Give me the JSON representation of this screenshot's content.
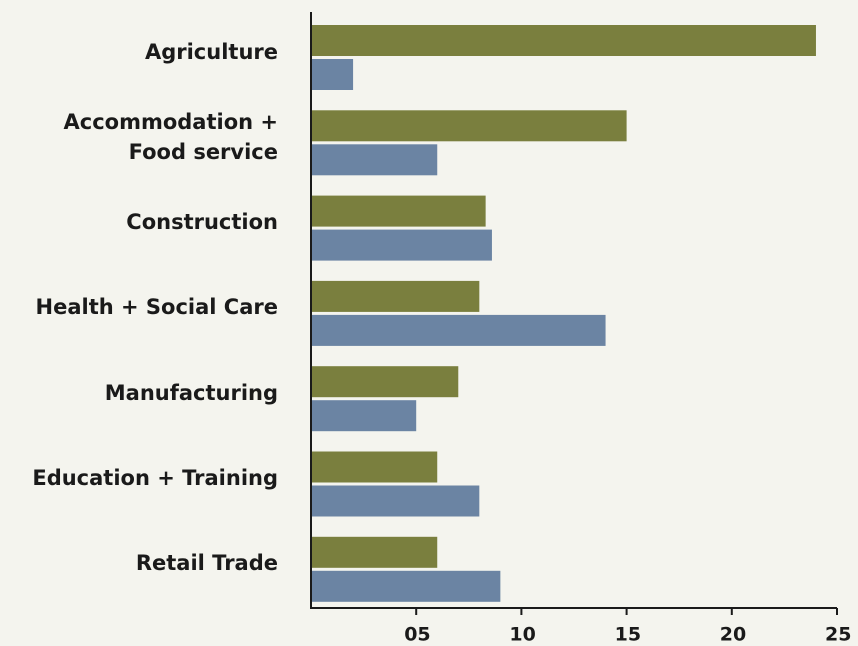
{
  "chart_data": {
    "type": "bar",
    "orientation": "horizontal",
    "categories": [
      "Agriculture",
      "Accommodation +\nFood service",
      "Construction",
      "Health + Social Care",
      "Manufacturing",
      "Education + Training",
      "Retail Trade"
    ],
    "series": [
      {
        "color": "#7a7f3e",
        "values": [
          24,
          15,
          8.3,
          8,
          7,
          6,
          6
        ]
      },
      {
        "color": "#6b84a3",
        "values": [
          2,
          6,
          8.6,
          14,
          5,
          8,
          9
        ]
      }
    ],
    "xlim": [
      0,
      25
    ],
    "xticks": [
      {
        "value": 5,
        "label": "05"
      },
      10,
      15,
      20,
      25
    ]
  }
}
